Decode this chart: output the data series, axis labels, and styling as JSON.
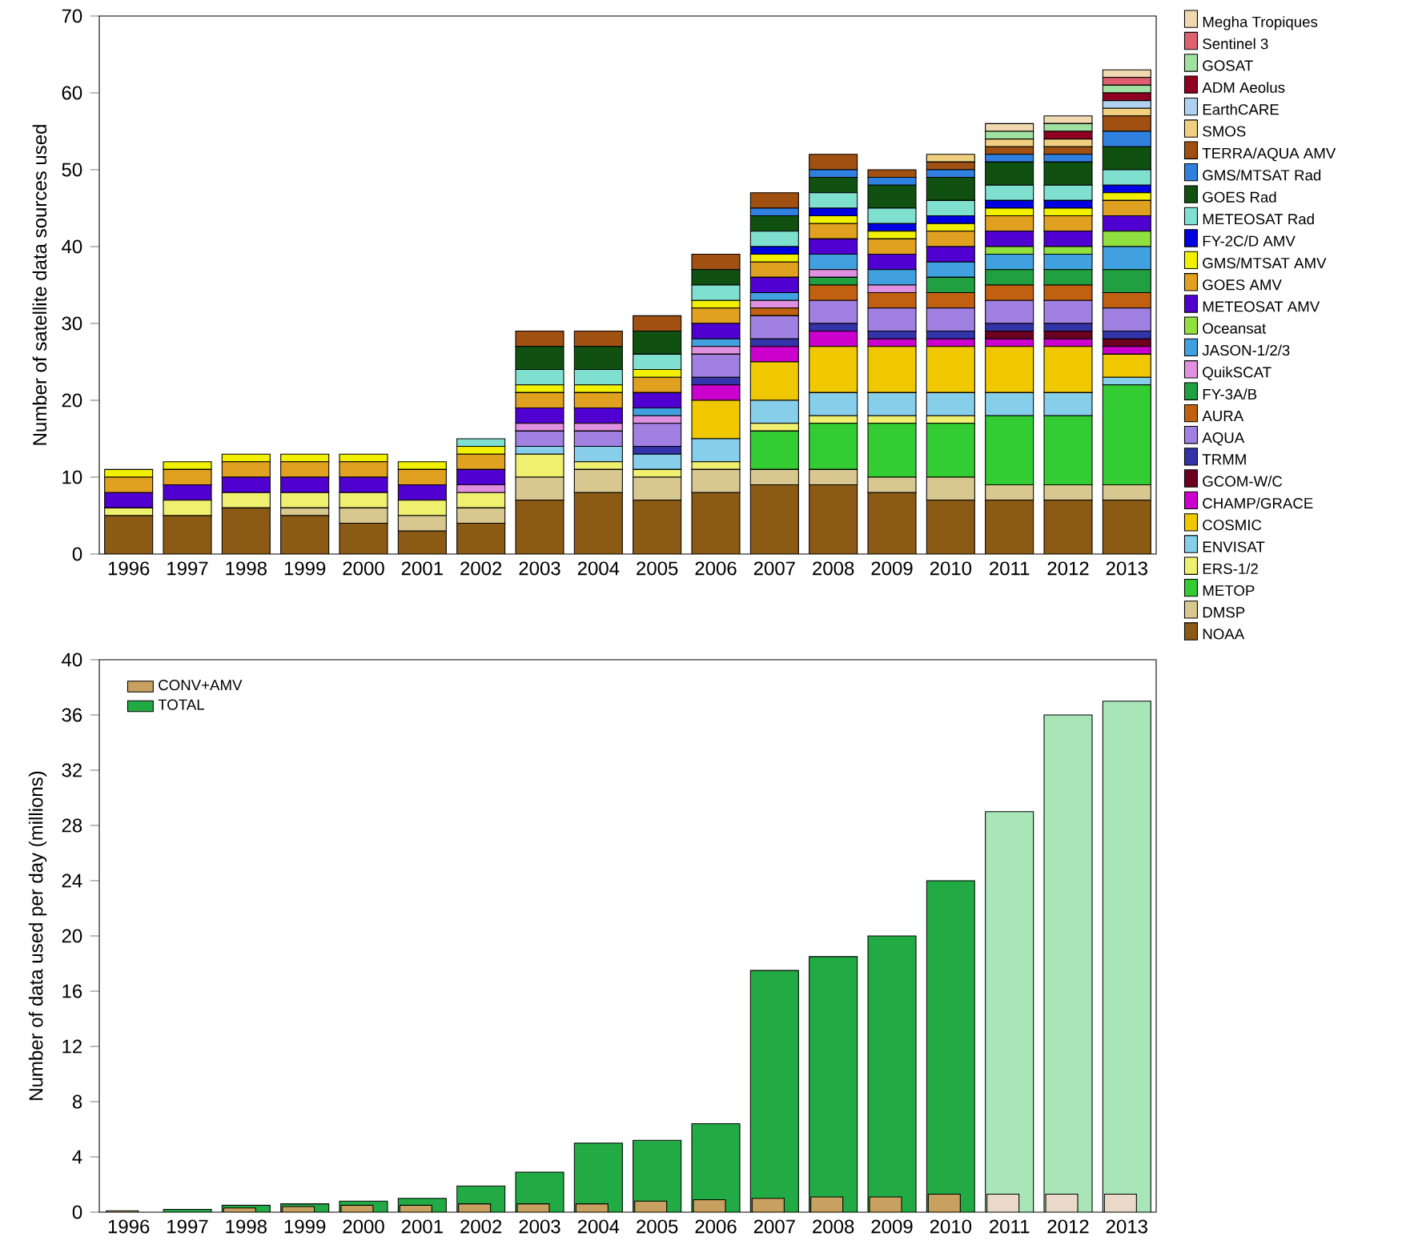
{
  "chart_data": [
    {
      "type": "bar",
      "stacked": true,
      "legend": "right",
      "ylabel": "Number of satellite data sources used",
      "categories": [
        "1996",
        "1997",
        "1998",
        "1999",
        "2000",
        "2001",
        "2002",
        "2003",
        "2004",
        "2005",
        "2006",
        "2007",
        "2008",
        "2009",
        "2010",
        "2011",
        "2012",
        "2013"
      ],
      "ylim": [
        0,
        70
      ],
      "yticks": [
        0,
        10,
        20,
        30,
        40,
        50,
        60,
        70
      ],
      "series": [
        {
          "name": "NOAA",
          "color": "#8b5a14",
          "values": [
            5,
            5,
            6,
            5,
            4,
            3,
            4,
            7,
            8,
            7,
            8,
            9,
            9,
            8,
            7,
            7,
            7,
            7
          ]
        },
        {
          "name": "DMSP",
          "color": "#d8c890",
          "values": [
            0,
            0,
            0,
            1,
            2,
            2,
            2,
            3,
            3,
            3,
            3,
            2,
            2,
            2,
            3,
            2,
            2,
            2
          ]
        },
        {
          "name": "METOP",
          "color": "#33cc33",
          "values": [
            0,
            0,
            0,
            0,
            0,
            0,
            0,
            0,
            0,
            0,
            0,
            5,
            6,
            7,
            7,
            9,
            9,
            13
          ]
        },
        {
          "name": "ERS-1/2",
          "color": "#f0f070",
          "values": [
            1,
            2,
            2,
            2,
            2,
            2,
            2,
            3,
            1,
            1,
            1,
            1,
            1,
            1,
            1,
            0,
            0,
            0
          ]
        },
        {
          "name": "ENVISAT",
          "color": "#87ceeb",
          "values": [
            0,
            0,
            0,
            0,
            0,
            0,
            0,
            1,
            2,
            2,
            3,
            3,
            3,
            3,
            3,
            3,
            3,
            1
          ]
        },
        {
          "name": "COSMIC",
          "color": "#f0c800",
          "values": [
            0,
            0,
            0,
            0,
            0,
            0,
            0,
            0,
            0,
            0,
            5,
            5,
            6,
            6,
            6,
            6,
            6,
            3
          ]
        },
        {
          "name": "CHAMP/GRACE",
          "color": "#cc00cc",
          "values": [
            0,
            0,
            0,
            0,
            0,
            0,
            0,
            0,
            0,
            0,
            2,
            2,
            2,
            1,
            1,
            1,
            1,
            1
          ]
        },
        {
          "name": "GCOM-W/C",
          "color": "#6b0020",
          "values": [
            0,
            0,
            0,
            0,
            0,
            0,
            0,
            0,
            0,
            0,
            0,
            0,
            0,
            0,
            0,
            1,
            1,
            1
          ]
        },
        {
          "name": "TRMM",
          "color": "#3333aa",
          "values": [
            0,
            0,
            0,
            0,
            0,
            0,
            0,
            0,
            0,
            1,
            1,
            1,
            1,
            1,
            1,
            1,
            1,
            1
          ]
        },
        {
          "name": "AQUA",
          "color": "#a080e0",
          "values": [
            0,
            0,
            0,
            0,
            0,
            0,
            0,
            2,
            2,
            3,
            3,
            3,
            3,
            3,
            3,
            3,
            3,
            3
          ]
        },
        {
          "name": "AURA",
          "color": "#c06010",
          "values": [
            0,
            0,
            0,
            0,
            0,
            0,
            0,
            0,
            0,
            0,
            0,
            1,
            2,
            2,
            2,
            2,
            2,
            2
          ]
        },
        {
          "name": "FY-3A/B",
          "color": "#20a040",
          "values": [
            0,
            0,
            0,
            0,
            0,
            0,
            0,
            0,
            0,
            0,
            0,
            0,
            1,
            0,
            2,
            2,
            2,
            3
          ]
        },
        {
          "name": "QuikSCAT",
          "color": "#e090e0",
          "values": [
            0,
            0,
            0,
            0,
            0,
            0,
            1,
            1,
            1,
            1,
            1,
            1,
            1,
            1,
            0,
            0,
            0,
            0
          ]
        },
        {
          "name": "JASON-1/2/3",
          "color": "#40a0e0",
          "values": [
            0,
            0,
            0,
            0,
            0,
            0,
            0,
            0,
            0,
            1,
            1,
            1,
            2,
            2,
            2,
            2,
            2,
            3
          ]
        },
        {
          "name": "Oceansat",
          "color": "#90e040",
          "values": [
            0,
            0,
            0,
            0,
            0,
            0,
            0,
            0,
            0,
            0,
            0,
            0,
            0,
            0,
            0,
            1,
            1,
            2
          ]
        },
        {
          "name": "METEOSAT AMV",
          "color": "#5000d0",
          "values": [
            2,
            2,
            2,
            2,
            2,
            2,
            2,
            2,
            2,
            2,
            2,
            2,
            2,
            2,
            2,
            2,
            2,
            2
          ]
        },
        {
          "name": "GOES AMV",
          "color": "#e0a020",
          "values": [
            2,
            2,
            2,
            2,
            2,
            2,
            2,
            2,
            2,
            2,
            2,
            2,
            2,
            2,
            2,
            2,
            2,
            2
          ]
        },
        {
          "name": "GMS/MTSAT AMV",
          "color": "#f0f000",
          "values": [
            1,
            1,
            1,
            1,
            1,
            1,
            1,
            1,
            1,
            1,
            1,
            1,
            1,
            1,
            1,
            1,
            1,
            1
          ]
        },
        {
          "name": "FY-2C/D AMV",
          "color": "#0000e0",
          "values": [
            0,
            0,
            0,
            0,
            0,
            0,
            0,
            0,
            0,
            0,
            0,
            1,
            1,
            1,
            1,
            1,
            1,
            1
          ]
        },
        {
          "name": "METEOSAT Rad",
          "color": "#80e0d0",
          "values": [
            0,
            0,
            0,
            0,
            0,
            0,
            1,
            2,
            2,
            2,
            2,
            2,
            2,
            2,
            2,
            2,
            2,
            2
          ]
        },
        {
          "name": "GOES Rad",
          "color": "#105010",
          "values": [
            0,
            0,
            0,
            0,
            0,
            0,
            0,
            3,
            3,
            3,
            2,
            2,
            2,
            3,
            3,
            3,
            3,
            3
          ]
        },
        {
          "name": "GMS/MTSAT Rad",
          "color": "#3080e0",
          "values": [
            0,
            0,
            0,
            0,
            0,
            0,
            0,
            0,
            0,
            0,
            0,
            1,
            1,
            1,
            1,
            1,
            1,
            2
          ]
        },
        {
          "name": "TERRA/AQUA AMV",
          "color": "#a05010",
          "values": [
            0,
            0,
            0,
            0,
            0,
            0,
            0,
            2,
            2,
            2,
            2,
            2,
            2,
            1,
            1,
            1,
            1,
            2
          ]
        },
        {
          "name": "SMOS",
          "color": "#f0d080",
          "values": [
            0,
            0,
            0,
            0,
            0,
            0,
            0,
            0,
            0,
            0,
            0,
            0,
            0,
            0,
            1,
            1,
            1,
            1
          ]
        },
        {
          "name": "EarthCARE",
          "color": "#b0d0f0",
          "values": [
            0,
            0,
            0,
            0,
            0,
            0,
            0,
            0,
            0,
            0,
            0,
            0,
            0,
            0,
            0,
            0,
            0,
            1
          ]
        },
        {
          "name": "ADM Aeolus",
          "color": "#900020",
          "values": [
            0,
            0,
            0,
            0,
            0,
            0,
            0,
            0,
            0,
            0,
            0,
            0,
            0,
            0,
            0,
            0,
            1,
            1
          ]
        },
        {
          "name": "GOSAT",
          "color": "#a0e0a0",
          "values": [
            0,
            0,
            0,
            0,
            0,
            0,
            0,
            0,
            0,
            0,
            0,
            0,
            0,
            0,
            0,
            1,
            1,
            1
          ]
        },
        {
          "name": "Sentinel 3",
          "color": "#e06070",
          "values": [
            0,
            0,
            0,
            0,
            0,
            0,
            0,
            0,
            0,
            0,
            0,
            0,
            0,
            0,
            0,
            0,
            0,
            1
          ]
        },
        {
          "name": "Megha Tropiques",
          "color": "#f0d8b0",
          "values": [
            0,
            0,
            0,
            0,
            0,
            0,
            0,
            0,
            0,
            0,
            0,
            0,
            0,
            0,
            0,
            1,
            1,
            1
          ]
        }
      ]
    },
    {
      "type": "bar",
      "legend": "top left",
      "ylabel": "Number of data used per day (millions)",
      "categories": [
        "1996",
        "1997",
        "1998",
        "1999",
        "2000",
        "2001",
        "2002",
        "2003",
        "2004",
        "2005",
        "2006",
        "2007",
        "2008",
        "2009",
        "2010",
        "2011",
        "2012",
        "2013"
      ],
      "ylim": [
        0,
        40
      ],
      "yticks": [
        0,
        4,
        8,
        12,
        16,
        20,
        24,
        28,
        32,
        36,
        40
      ],
      "series": [
        {
          "name": "CONV+AMV",
          "color": "#c8a060",
          "colors": [
            "#c8a060",
            "#c8a060",
            "#c8a060",
            "#c8a060",
            "#c8a060",
            "#c8a060",
            "#c8a060",
            "#c8a060",
            "#c8a060",
            "#c8a060",
            "#c8a060",
            "#c8a060",
            "#c8a060",
            "#c8a060",
            "#c8a060",
            "#ead8c8",
            "#ead8c8",
            "#ead8c8"
          ],
          "values": [
            0.1,
            null,
            0.3,
            0.4,
            0.5,
            0.5,
            0.6,
            0.6,
            0.6,
            0.8,
            0.9,
            1.0,
            1.1,
            1.1,
            1.3,
            1.3,
            1.3,
            1.3
          ]
        },
        {
          "name": "TOTAL",
          "color": "#22aa44",
          "colors": [
            "#22aa44",
            "#22aa44",
            "#22aa44",
            "#22aa44",
            "#22aa44",
            "#22aa44",
            "#22aa44",
            "#22aa44",
            "#22aa44",
            "#22aa44",
            "#22aa44",
            "#22aa44",
            "#22aa44",
            "#22aa44",
            "#22aa44",
            "#a8e6b8",
            "#a8e6b8",
            "#a8e6b8"
          ],
          "values": [
            null,
            0.2,
            0.5,
            0.6,
            0.8,
            1.0,
            1.9,
            2.9,
            5.0,
            5.2,
            6.4,
            17.5,
            18.5,
            20,
            24,
            29,
            36,
            37
          ]
        }
      ]
    }
  ]
}
